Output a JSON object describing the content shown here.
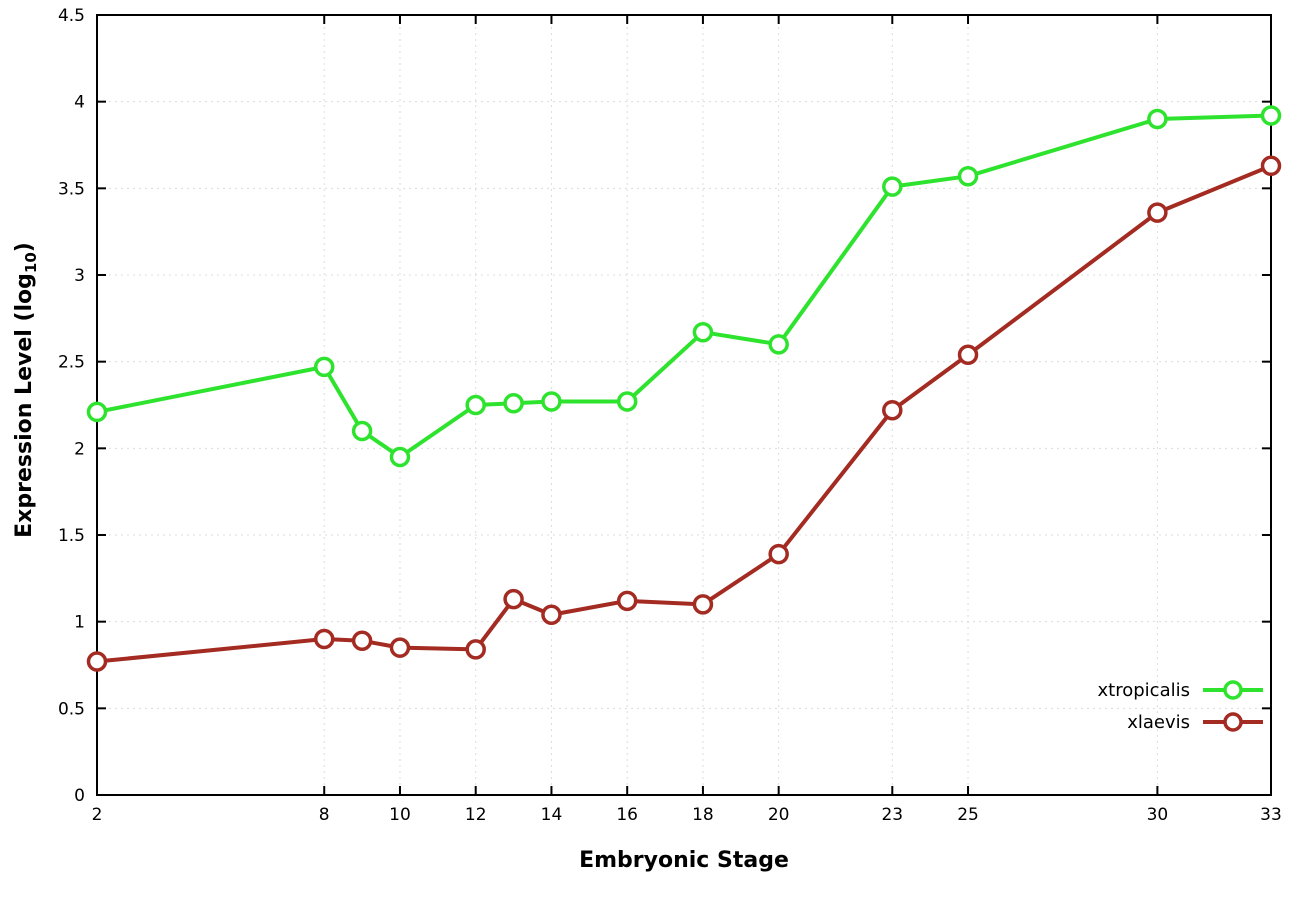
{
  "chart_data": {
    "type": "line",
    "title": "",
    "xlabel": "Embryonic Stage",
    "ylabel": "Expression Level (log10)",
    "ylabel_parts": {
      "prefix": "Expression Level (log",
      "subscript": "10",
      "suffix": ")"
    },
    "xlim": [
      2,
      33
    ],
    "ylim": [
      0,
      4.5
    ],
    "xticks": [
      2,
      8,
      10,
      12,
      14,
      16,
      18,
      20,
      23,
      25,
      30,
      33
    ],
    "yticks": [
      0,
      0.5,
      1,
      1.5,
      2,
      2.5,
      3,
      3.5,
      4,
      4.5
    ],
    "grid": true,
    "legend_position": "inside-bottom-right",
    "marker": "open-circle",
    "x": [
      2,
      8,
      9,
      10,
      12,
      13,
      14,
      16,
      18,
      20,
      23,
      25,
      30,
      33
    ],
    "series": [
      {
        "name": "xtropicalis",
        "color": "#2ee32e",
        "values": [
          2.21,
          2.47,
          2.1,
          1.95,
          2.25,
          2.26,
          2.27,
          2.27,
          2.67,
          2.6,
          3.51,
          3.57,
          3.9,
          3.92
        ]
      },
      {
        "name": "xlaevis",
        "color": "#a32b22",
        "values": [
          0.77,
          0.9,
          0.89,
          0.85,
          0.84,
          1.13,
          1.04,
          1.12,
          1.1,
          1.39,
          2.22,
          2.54,
          3.36,
          3.63
        ]
      }
    ]
  },
  "colors": {
    "axis": "#000000",
    "grid": "#dcdcdc",
    "background": "#ffffff",
    "marker_fill": "#ffffff"
  }
}
